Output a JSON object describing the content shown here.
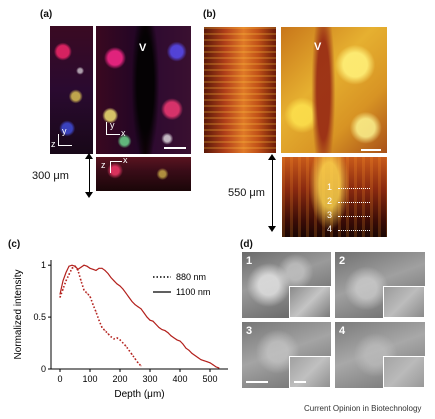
{
  "panels": {
    "a": {
      "label": "(a)",
      "vessel_label": "V",
      "depth_label": "300 μm",
      "axes": {
        "y": "y",
        "x": "x",
        "z": "z"
      }
    },
    "b": {
      "label": "(b)",
      "vessel_label": "V",
      "depth_label": "550 μm",
      "markers": [
        "1",
        "2",
        "3",
        "4"
      ]
    },
    "c": {
      "label": "(c)"
    },
    "d": {
      "label": "(d)",
      "tiles": [
        "1",
        "2",
        "3",
        "4"
      ]
    }
  },
  "chart_data": {
    "type": "line",
    "title": "",
    "xlabel": "Depth (μm)",
    "ylabel": "Normalized intensity",
    "xlim": [
      -30,
      560
    ],
    "ylim": [
      0,
      1.05
    ],
    "xticks": [
      0,
      100,
      200,
      300,
      400,
      500
    ],
    "yticks": [
      0,
      0.5,
      1
    ],
    "yticklabels": [
      "0",
      "0.5",
      "1"
    ],
    "legend_position": "top-right",
    "series": [
      {
        "name": "880 nm",
        "style": "dotted",
        "color": "#b3201c",
        "x": [
          0,
          10,
          20,
          30,
          40,
          50,
          60,
          70,
          80,
          90,
          100,
          110,
          120,
          130,
          140,
          150,
          160,
          170,
          180,
          190,
          200,
          210,
          220,
          230,
          240,
          250,
          260,
          270
        ],
        "y": [
          0.69,
          0.77,
          0.85,
          0.91,
          0.97,
          0.99,
          0.95,
          0.85,
          0.76,
          0.73,
          0.7,
          0.62,
          0.55,
          0.47,
          0.4,
          0.37,
          0.34,
          0.31,
          0.29,
          0.3,
          0.28,
          0.25,
          0.22,
          0.18,
          0.14,
          0.1,
          0.06,
          0.03
        ]
      },
      {
        "name": "1100 nm",
        "style": "solid",
        "color": "#b3201c",
        "x": [
          0,
          10,
          20,
          30,
          40,
          50,
          60,
          70,
          80,
          90,
          100,
          110,
          120,
          130,
          140,
          150,
          160,
          170,
          180,
          190,
          200,
          210,
          220,
          230,
          240,
          250,
          260,
          270,
          280,
          290,
          300,
          310,
          320,
          330,
          340,
          350,
          360,
          370,
          380,
          390,
          400,
          410,
          420,
          430,
          440,
          450,
          460,
          470,
          480,
          490,
          500,
          510,
          520,
          530
        ],
        "y": [
          0.72,
          0.85,
          0.93,
          0.99,
          1.0,
          0.99,
          0.96,
          0.98,
          1.0,
          0.99,
          0.97,
          0.96,
          0.95,
          0.97,
          0.97,
          0.95,
          0.92,
          0.88,
          0.85,
          0.82,
          0.8,
          0.77,
          0.73,
          0.69,
          0.65,
          0.62,
          0.6,
          0.58,
          0.54,
          0.5,
          0.47,
          0.46,
          0.43,
          0.4,
          0.38,
          0.37,
          0.35,
          0.32,
          0.3,
          0.28,
          0.27,
          0.24,
          0.2,
          0.18,
          0.15,
          0.13,
          0.11,
          0.09,
          0.08,
          0.07,
          0.06,
          0.04,
          0.02,
          0.01
        ]
      }
    ]
  },
  "footer": {
    "credit": "Current Opinion in Biotechnology"
  }
}
